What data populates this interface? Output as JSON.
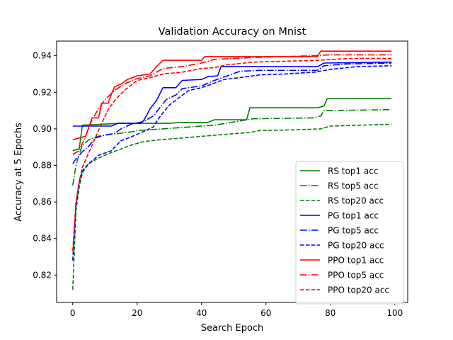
{
  "chart_data": {
    "type": "line",
    "title": "Validation Accuracy on Mnist",
    "xlabel": "Search Epoch",
    "ylabel": "Accuracy at 5 Epochs",
    "xlim": [
      -5,
      104
    ],
    "ylim": [
      0.805,
      0.948
    ],
    "xticks": [
      0,
      20,
      40,
      60,
      80,
      100
    ],
    "yticks": [
      0.82,
      0.84,
      0.86,
      0.88,
      0.9,
      0.92,
      0.94
    ],
    "ytick_labels": [
      "0.82",
      "0.84",
      "0.86",
      "0.88",
      "0.90",
      "0.92",
      "0.94"
    ],
    "grid": false,
    "legend_position": "lower right",
    "series": [
      {
        "name": "RS top1 acc",
        "color": "#008000",
        "dash": "solid",
        "points": [
          [
            0,
            0.888
          ],
          [
            2,
            0.889
          ],
          [
            3,
            0.902
          ],
          [
            15,
            0.903
          ],
          [
            30,
            0.903
          ],
          [
            34,
            0.9035
          ],
          [
            42,
            0.9035
          ],
          [
            44,
            0.905
          ],
          [
            54,
            0.905
          ],
          [
            55,
            0.9115
          ],
          [
            76,
            0.9115
          ],
          [
            78,
            0.9125
          ],
          [
            79,
            0.9165
          ],
          [
            99,
            0.9165
          ]
        ]
      },
      {
        "name": "RS top5 acc",
        "color": "#008000",
        "dash": "dashdot",
        "points": [
          [
            0,
            0.869
          ],
          [
            1,
            0.88
          ],
          [
            2,
            0.886
          ],
          [
            3,
            0.891
          ],
          [
            5,
            0.894
          ],
          [
            8,
            0.896
          ],
          [
            12,
            0.897
          ],
          [
            19,
            0.8985
          ],
          [
            20,
            0.899
          ],
          [
            28,
            0.9
          ],
          [
            36,
            0.901
          ],
          [
            44,
            0.902
          ],
          [
            56,
            0.9055
          ],
          [
            75,
            0.906
          ],
          [
            77,
            0.907
          ],
          [
            78,
            0.91
          ],
          [
            99,
            0.9105
          ]
        ]
      },
      {
        "name": "RS top20 acc",
        "color": "#008000",
        "dash": "dashed",
        "points": [
          [
            0,
            0.812
          ],
          [
            1,
            0.855
          ],
          [
            2,
            0.868
          ],
          [
            3,
            0.876
          ],
          [
            5,
            0.881
          ],
          [
            8,
            0.884
          ],
          [
            12,
            0.887
          ],
          [
            15,
            0.889
          ],
          [
            18,
            0.891
          ],
          [
            22,
            0.893
          ],
          [
            27,
            0.894
          ],
          [
            34,
            0.895
          ],
          [
            44,
            0.8965
          ],
          [
            55,
            0.898
          ],
          [
            58,
            0.899
          ],
          [
            70,
            0.8995
          ],
          [
            77,
            0.9
          ],
          [
            80,
            0.9015
          ],
          [
            99,
            0.9025
          ]
        ]
      },
      {
        "name": "PG top1 acc",
        "color": "#0000ff",
        "dash": "solid",
        "points": [
          [
            0,
            0.9015
          ],
          [
            12,
            0.9015
          ],
          [
            14,
            0.903
          ],
          [
            21,
            0.903
          ],
          [
            22,
            0.9045
          ],
          [
            23,
            0.9075
          ],
          [
            24,
            0.911
          ],
          [
            26,
            0.9155
          ],
          [
            28,
            0.9225
          ],
          [
            32,
            0.9225
          ],
          [
            34,
            0.9265
          ],
          [
            40,
            0.927
          ],
          [
            42,
            0.9285
          ],
          [
            45,
            0.929
          ],
          [
            46,
            0.934
          ],
          [
            76,
            0.934
          ],
          [
            78,
            0.936
          ],
          [
            99,
            0.9365
          ]
        ]
      },
      {
        "name": "PG top5 acc",
        "color": "#0000ff",
        "dash": "dashdot",
        "points": [
          [
            0,
            0.881
          ],
          [
            1,
            0.8835
          ],
          [
            3,
            0.8875
          ],
          [
            5,
            0.8905
          ],
          [
            7,
            0.895
          ],
          [
            10,
            0.8965
          ],
          [
            13,
            0.8975
          ],
          [
            15,
            0.9
          ],
          [
            18,
            0.9025
          ],
          [
            22,
            0.904
          ],
          [
            25,
            0.907
          ],
          [
            27,
            0.9115
          ],
          [
            29,
            0.916
          ],
          [
            32,
            0.9185
          ],
          [
            34,
            0.922
          ],
          [
            40,
            0.9235
          ],
          [
            44,
            0.9265
          ],
          [
            48,
            0.929
          ],
          [
            52,
            0.9315
          ],
          [
            58,
            0.932
          ],
          [
            76,
            0.932
          ],
          [
            78,
            0.9345
          ],
          [
            85,
            0.9355
          ],
          [
            99,
            0.936
          ]
        ]
      },
      {
        "name": "PG top20 acc",
        "color": "#0000ff",
        "dash": "dashed",
        "points": [
          [
            0,
            0.828
          ],
          [
            1,
            0.858
          ],
          [
            2,
            0.871
          ],
          [
            3,
            0.877
          ],
          [
            5,
            0.881
          ],
          [
            8,
            0.8855
          ],
          [
            12,
            0.888
          ],
          [
            15,
            0.8935
          ],
          [
            18,
            0.8955
          ],
          [
            22,
            0.8985
          ],
          [
            25,
            0.901
          ],
          [
            27,
            0.9065
          ],
          [
            30,
            0.913
          ],
          [
            33,
            0.917
          ],
          [
            36,
            0.921
          ],
          [
            40,
            0.9225
          ],
          [
            44,
            0.925
          ],
          [
            47,
            0.927
          ],
          [
            52,
            0.928
          ],
          [
            58,
            0.9295
          ],
          [
            66,
            0.93
          ],
          [
            75,
            0.931
          ],
          [
            80,
            0.9325
          ],
          [
            88,
            0.934
          ],
          [
            99,
            0.9345
          ]
        ]
      },
      {
        "name": "PPO top1 acc",
        "color": "#ff0000",
        "dash": "solid",
        "points": [
          [
            0,
            0.894
          ],
          [
            2,
            0.895
          ],
          [
            4,
            0.896
          ],
          [
            6,
            0.906
          ],
          [
            8,
            0.906
          ],
          [
            9,
            0.914
          ],
          [
            11,
            0.914
          ],
          [
            12,
            0.919
          ],
          [
            13,
            0.923
          ],
          [
            15,
            0.9245
          ],
          [
            17,
            0.927
          ],
          [
            20,
            0.929
          ],
          [
            24,
            0.93
          ],
          [
            26,
            0.934
          ],
          [
            28,
            0.9375
          ],
          [
            40,
            0.9375
          ],
          [
            41,
            0.9395
          ],
          [
            76,
            0.9395
          ],
          [
            77,
            0.9425
          ],
          [
            99,
            0.9425
          ]
        ]
      },
      {
        "name": "PPO top5 acc",
        "color": "#ff0000",
        "dash": "dashdot",
        "points": [
          [
            0,
            0.886
          ],
          [
            2,
            0.888
          ],
          [
            4,
            0.896
          ],
          [
            6,
            0.905
          ],
          [
            8,
            0.911
          ],
          [
            10,
            0.916
          ],
          [
            13,
            0.921
          ],
          [
            16,
            0.9245
          ],
          [
            20,
            0.9275
          ],
          [
            24,
            0.929
          ],
          [
            28,
            0.933
          ],
          [
            34,
            0.934
          ],
          [
            40,
            0.936
          ],
          [
            44,
            0.938
          ],
          [
            56,
            0.939
          ],
          [
            66,
            0.9395
          ],
          [
            75,
            0.94
          ],
          [
            80,
            0.9405
          ],
          [
            99,
            0.9405
          ]
        ]
      },
      {
        "name": "PPO top20 acc",
        "color": "#ff0000",
        "dash": "dashed",
        "points": [
          [
            0,
            0.833
          ],
          [
            1,
            0.86
          ],
          [
            2,
            0.871
          ],
          [
            3,
            0.879
          ],
          [
            5,
            0.887
          ],
          [
            7,
            0.895
          ],
          [
            9,
            0.903
          ],
          [
            11,
            0.9105
          ],
          [
            13,
            0.9155
          ],
          [
            16,
            0.921
          ],
          [
            20,
            0.9265
          ],
          [
            24,
            0.928
          ],
          [
            28,
            0.93
          ],
          [
            34,
            0.931
          ],
          [
            40,
            0.933
          ],
          [
            44,
            0.9335
          ],
          [
            48,
            0.935
          ],
          [
            56,
            0.9365
          ],
          [
            66,
            0.937
          ],
          [
            76,
            0.9375
          ],
          [
            86,
            0.9385
          ],
          [
            99,
            0.9385
          ]
        ]
      }
    ]
  }
}
